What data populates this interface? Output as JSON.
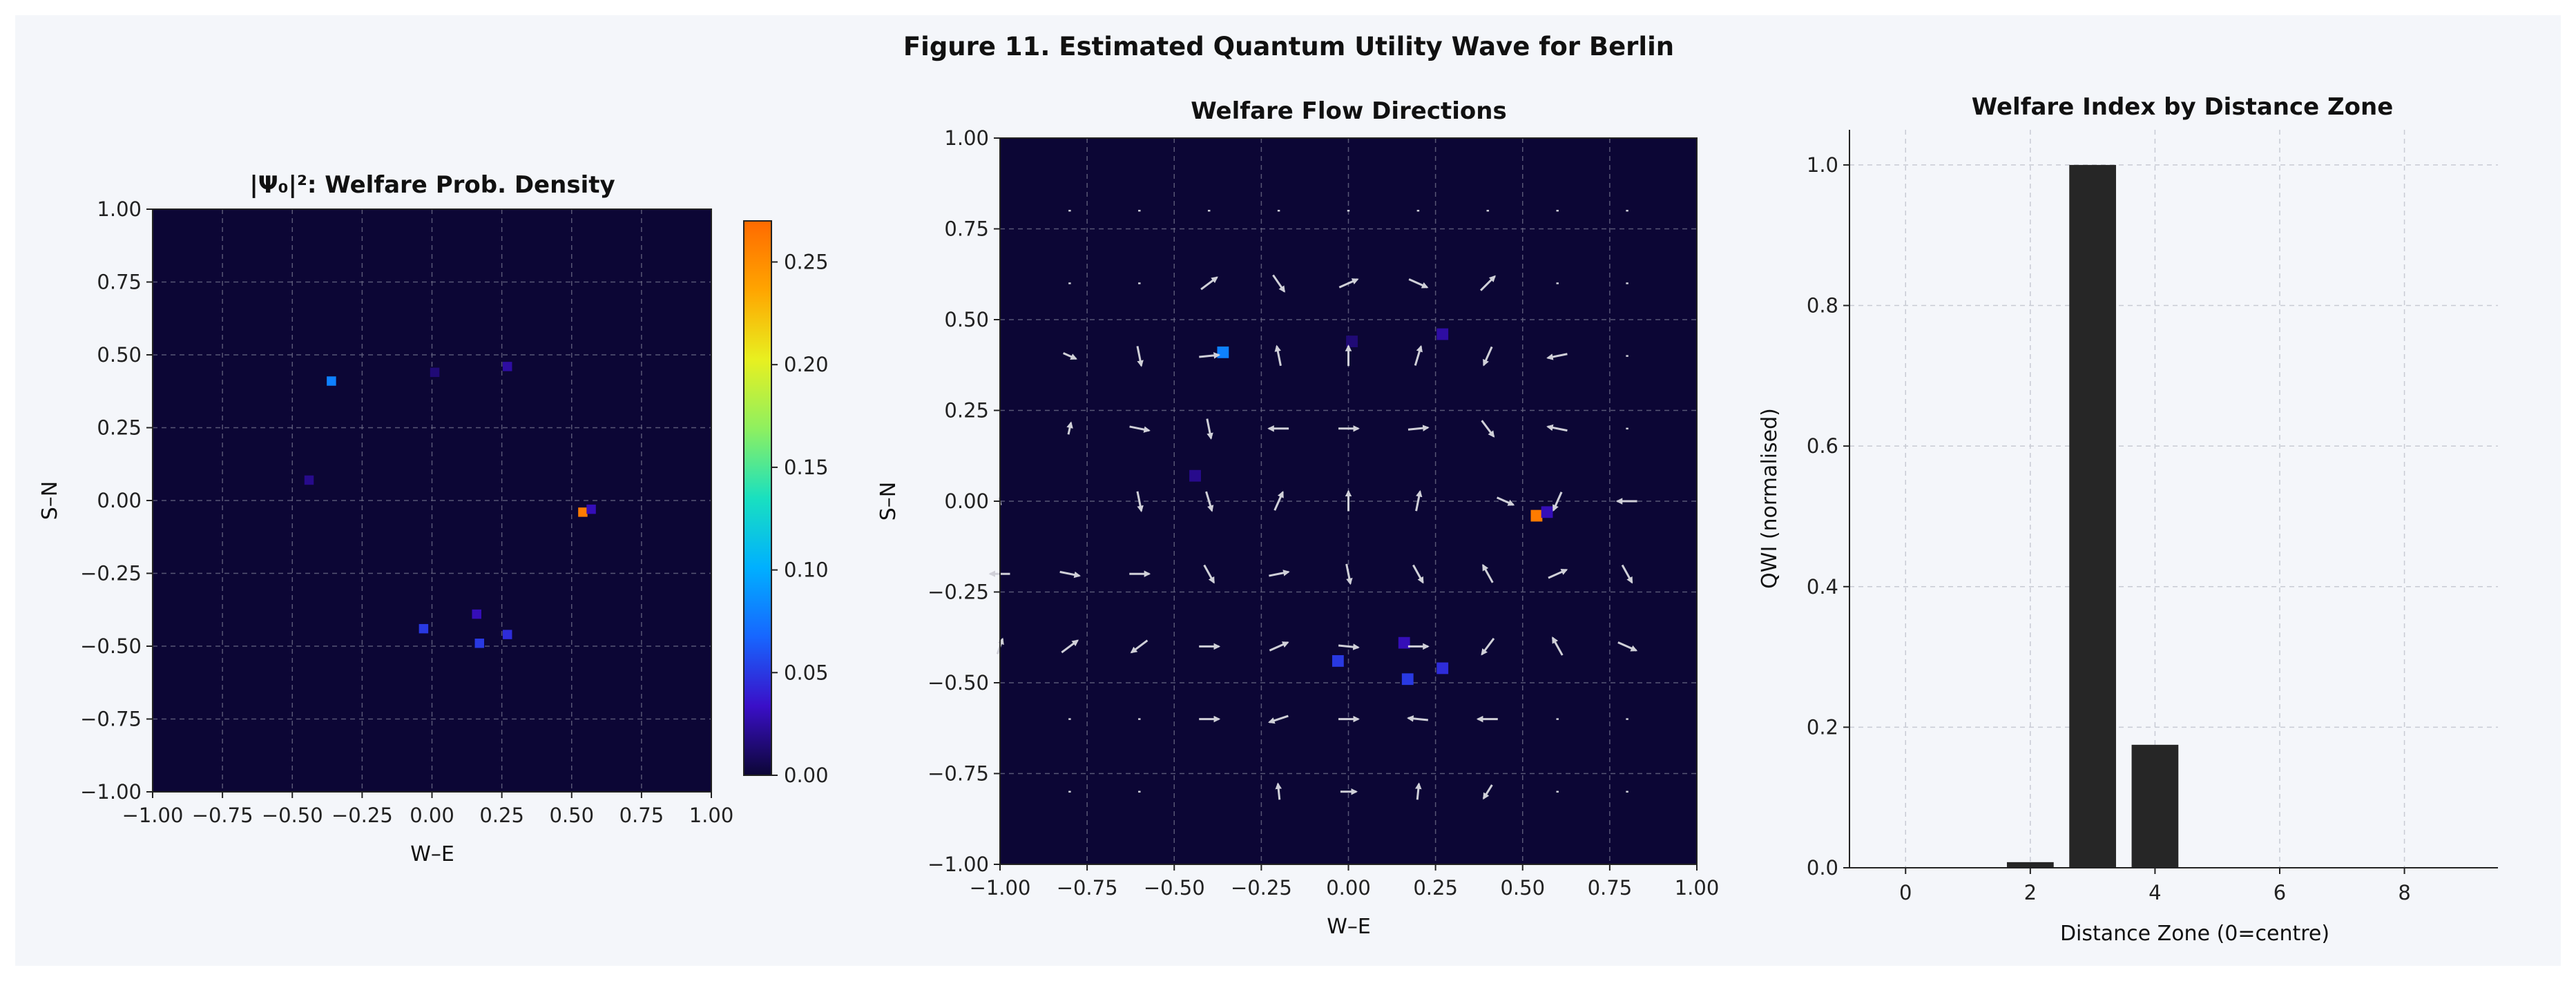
{
  "figure": {
    "title": "Figure 11. Estimated Quantum Utility Wave for Berlin",
    "background": "#f4f6fa"
  },
  "colors": {
    "heatmap_background": "#0c0635",
    "grid": "#6b6b85",
    "arrow": "#d0d0d8",
    "bar": "#262626",
    "axis": "#222222",
    "colormap_stops": [
      "#0c0635",
      "#3a0fc8",
      "#1766ff",
      "#00b0ff",
      "#19e0c0",
      "#8ef060",
      "#e8f020",
      "#ffa500",
      "#ff6a00"
    ]
  },
  "chart_data": [
    {
      "type": "heatmap",
      "title": "|Ψ₀|²: Welfare Prob. Density",
      "xlabel": "W–E",
      "ylabel": "S–N",
      "xlim": [
        -1.0,
        1.0
      ],
      "ylim": [
        -1.0,
        1.0
      ],
      "x_ticks": [
        "−1.00",
        "−0.75",
        "−0.50",
        "−0.25",
        "0.00",
        "0.25",
        "0.50",
        "0.75",
        "1.00"
      ],
      "y_ticks": [
        "1.00",
        "0.75",
        "0.50",
        "0.25",
        "0.00",
        "−0.25",
        "−0.50",
        "−0.75",
        "−1.00"
      ],
      "grid": true,
      "colorbar": {
        "range": [
          0.0,
          0.27
        ],
        "ticks": [
          "0.00",
          "0.05",
          "0.10",
          "0.15",
          "0.20",
          "0.25"
        ],
        "tick_values": [
          0.0,
          0.05,
          0.1,
          0.15,
          0.2,
          0.25
        ]
      },
      "points": [
        {
          "x": 0.54,
          "y": -0.04,
          "value": 0.26
        },
        {
          "x": -0.36,
          "y": 0.41,
          "value": 0.08
        },
        {
          "x": -0.03,
          "y": -0.44,
          "value": 0.05
        },
        {
          "x": 0.17,
          "y": -0.49,
          "value": 0.05
        },
        {
          "x": 0.27,
          "y": -0.46,
          "value": 0.045
        },
        {
          "x": 0.16,
          "y": -0.39,
          "value": 0.03
        },
        {
          "x": 0.27,
          "y": 0.46,
          "value": 0.025
        },
        {
          "x": 0.57,
          "y": -0.03,
          "value": 0.03
        },
        {
          "x": -0.44,
          "y": 0.07,
          "value": 0.02
        },
        {
          "x": 0.01,
          "y": 0.44,
          "value": 0.015
        }
      ]
    },
    {
      "type": "heatmap",
      "title": "Welfare Flow Directions",
      "xlabel": "W–E",
      "ylabel": "S–N",
      "xlim": [
        -1.0,
        1.0
      ],
      "ylim": [
        -1.0,
        1.0
      ],
      "x_ticks": [
        "−1.00",
        "−0.75",
        "−0.50",
        "−0.25",
        "0.00",
        "0.25",
        "0.50",
        "0.75",
        "1.00"
      ],
      "y_ticks": [
        "1.00",
        "0.75",
        "0.50",
        "0.25",
        "0.00",
        "−0.25",
        "−0.50",
        "−0.75",
        "−1.00"
      ],
      "grid": true,
      "background_points": [
        {
          "x": 0.54,
          "y": -0.04,
          "value": 0.26
        },
        {
          "x": -0.36,
          "y": 0.41,
          "value": 0.08
        },
        {
          "x": -0.03,
          "y": -0.44,
          "value": 0.05
        },
        {
          "x": 0.17,
          "y": -0.49,
          "value": 0.05
        },
        {
          "x": 0.27,
          "y": -0.46,
          "value": 0.045
        },
        {
          "x": 0.16,
          "y": -0.39,
          "value": 0.03
        },
        {
          "x": 0.27,
          "y": 0.46,
          "value": 0.025
        },
        {
          "x": 0.57,
          "y": -0.03,
          "value": 0.03
        },
        {
          "x": -0.44,
          "y": 0.07,
          "value": 0.02
        },
        {
          "x": 0.01,
          "y": 0.44,
          "value": 0.015
        }
      ],
      "arrows": [
        {
          "x": -0.8,
          "y": 0.8,
          "u": 0.2,
          "v": 0.0,
          "m": 0.06
        },
        {
          "x": -0.6,
          "y": 0.8,
          "u": 0.2,
          "v": 0.0,
          "m": 0.06
        },
        {
          "x": -0.4,
          "y": 0.8,
          "u": 0.2,
          "v": 0.0,
          "m": 0.06
        },
        {
          "x": -0.2,
          "y": 0.8,
          "u": 0.2,
          "v": 0.0,
          "m": 0.06
        },
        {
          "x": 0.0,
          "y": 0.8,
          "u": 0.2,
          "v": 0.0,
          "m": 0.06
        },
        {
          "x": 0.2,
          "y": 0.8,
          "u": 0.2,
          "v": 0.0,
          "m": 0.06
        },
        {
          "x": 0.4,
          "y": 0.8,
          "u": 0.2,
          "v": 0.0,
          "m": 0.06
        },
        {
          "x": 0.6,
          "y": 0.8,
          "u": 0.2,
          "v": 0.0,
          "m": 0.06
        },
        {
          "x": 0.8,
          "y": 0.8,
          "u": 0.2,
          "v": 0.0,
          "m": 0.06
        },
        {
          "x": -0.8,
          "y": 0.6,
          "u": 0.2,
          "v": 0.0,
          "m": 0.06
        },
        {
          "x": -0.6,
          "y": 0.6,
          "u": 0.2,
          "v": 0.0,
          "m": 0.06
        },
        {
          "x": -0.4,
          "y": 0.6,
          "u": 0.8,
          "v": 0.6,
          "m": 0.5
        },
        {
          "x": -0.2,
          "y": 0.6,
          "u": 0.55,
          "v": -0.8,
          "m": 0.5
        },
        {
          "x": 0.0,
          "y": 0.6,
          "u": 0.9,
          "v": 0.4,
          "m": 0.5
        },
        {
          "x": 0.2,
          "y": 0.6,
          "u": 0.9,
          "v": -0.4,
          "m": 0.5
        },
        {
          "x": 0.4,
          "y": 0.6,
          "u": 0.7,
          "v": 0.7,
          "m": 0.5
        },
        {
          "x": 0.6,
          "y": 0.6,
          "u": 0.2,
          "v": 0.0,
          "m": 0.06
        },
        {
          "x": 0.8,
          "y": 0.6,
          "u": 0.2,
          "v": 0.0,
          "m": 0.06
        },
        {
          "x": -0.8,
          "y": 0.4,
          "u": 0.9,
          "v": -0.4,
          "m": 0.35
        },
        {
          "x": -0.6,
          "y": 0.4,
          "u": 0.2,
          "v": -1.0,
          "m": 0.5
        },
        {
          "x": -0.4,
          "y": 0.4,
          "u": 1.0,
          "v": 0.1,
          "m": 0.5
        },
        {
          "x": -0.2,
          "y": 0.4,
          "u": -0.2,
          "v": 1.0,
          "m": 0.5
        },
        {
          "x": 0.0,
          "y": 0.4,
          "u": 0.0,
          "v": 1.0,
          "m": 0.5
        },
        {
          "x": 0.2,
          "y": 0.4,
          "u": 0.3,
          "v": 1.0,
          "m": 0.5
        },
        {
          "x": 0.4,
          "y": 0.4,
          "u": -0.4,
          "v": -0.9,
          "m": 0.5
        },
        {
          "x": 0.6,
          "y": 0.4,
          "u": -1.0,
          "v": -0.2,
          "m": 0.5
        },
        {
          "x": 0.8,
          "y": 0.4,
          "u": 0.2,
          "v": 0.0,
          "m": 0.06
        },
        {
          "x": -0.8,
          "y": 0.2,
          "u": 0.2,
          "v": 0.9,
          "m": 0.3
        },
        {
          "x": -0.6,
          "y": 0.2,
          "u": 1.0,
          "v": -0.2,
          "m": 0.5
        },
        {
          "x": -0.4,
          "y": 0.2,
          "u": 0.2,
          "v": -1.0,
          "m": 0.5
        },
        {
          "x": -0.2,
          "y": 0.2,
          "u": -1.0,
          "v": 0.0,
          "m": 0.5
        },
        {
          "x": 0.0,
          "y": 0.2,
          "u": 1.0,
          "v": 0.0,
          "m": 0.5
        },
        {
          "x": 0.2,
          "y": 0.2,
          "u": 1.0,
          "v": 0.1,
          "m": 0.5
        },
        {
          "x": 0.4,
          "y": 0.2,
          "u": 0.6,
          "v": -0.8,
          "m": 0.5
        },
        {
          "x": 0.6,
          "y": 0.2,
          "u": -1.0,
          "v": 0.2,
          "m": 0.5
        },
        {
          "x": 0.8,
          "y": 0.2,
          "u": 0.2,
          "v": 0.0,
          "m": 0.06
        },
        {
          "x": -1.0,
          "y": 0.0,
          "u": 0.2,
          "v": -0.9,
          "m": 0.2
        },
        {
          "x": -0.6,
          "y": 0.0,
          "u": 0.2,
          "v": -1.0,
          "m": 0.5
        },
        {
          "x": -0.4,
          "y": 0.0,
          "u": 0.3,
          "v": -1.0,
          "m": 0.5
        },
        {
          "x": -0.2,
          "y": 0.0,
          "u": 0.4,
          "v": 0.9,
          "m": 0.5
        },
        {
          "x": 0.0,
          "y": 0.0,
          "u": 0.0,
          "v": 1.0,
          "m": 0.5
        },
        {
          "x": 0.2,
          "y": 0.0,
          "u": 0.2,
          "v": 1.0,
          "m": 0.5
        },
        {
          "x": 0.45,
          "y": 0.0,
          "u": 0.9,
          "v": -0.4,
          "m": 0.45
        },
        {
          "x": 0.6,
          "y": 0.0,
          "u": -0.4,
          "v": -0.9,
          "m": 0.5
        },
        {
          "x": 0.8,
          "y": 0.0,
          "u": -1.0,
          "v": 0.0,
          "m": 0.5
        },
        {
          "x": -1.0,
          "y": -0.2,
          "u": -1.0,
          "v": 0.0,
          "m": 0.5
        },
        {
          "x": -0.8,
          "y": -0.2,
          "u": 1.0,
          "v": -0.2,
          "m": 0.5
        },
        {
          "x": -0.6,
          "y": -0.2,
          "u": 1.0,
          "v": 0.0,
          "m": 0.5
        },
        {
          "x": -0.4,
          "y": -0.2,
          "u": 0.5,
          "v": -0.9,
          "m": 0.5
        },
        {
          "x": -0.2,
          "y": -0.2,
          "u": 1.0,
          "v": 0.2,
          "m": 0.5
        },
        {
          "x": 0.0,
          "y": -0.2,
          "u": 0.2,
          "v": -1.0,
          "m": 0.5
        },
        {
          "x": 0.2,
          "y": -0.2,
          "u": 0.5,
          "v": -0.9,
          "m": 0.5
        },
        {
          "x": 0.4,
          "y": -0.2,
          "u": -0.5,
          "v": 0.9,
          "m": 0.5
        },
        {
          "x": 0.6,
          "y": -0.2,
          "u": 0.9,
          "v": 0.4,
          "m": 0.5
        },
        {
          "x": 0.8,
          "y": -0.2,
          "u": 0.5,
          "v": -0.9,
          "m": 0.5
        },
        {
          "x": -1.0,
          "y": -0.4,
          "u": 0.3,
          "v": 0.9,
          "m": 0.4
        },
        {
          "x": -0.8,
          "y": -0.4,
          "u": 0.8,
          "v": 0.6,
          "m": 0.5
        },
        {
          "x": -0.6,
          "y": -0.4,
          "u": -0.8,
          "v": -0.6,
          "m": 0.5
        },
        {
          "x": -0.4,
          "y": -0.4,
          "u": 1.0,
          "v": 0.0,
          "m": 0.5
        },
        {
          "x": -0.2,
          "y": -0.4,
          "u": 0.9,
          "v": 0.4,
          "m": 0.5
        },
        {
          "x": 0.0,
          "y": -0.4,
          "u": 1.0,
          "v": -0.1,
          "m": 0.5
        },
        {
          "x": 0.2,
          "y": -0.4,
          "u": 1.0,
          "v": 0.0,
          "m": 0.5
        },
        {
          "x": 0.4,
          "y": -0.4,
          "u": -0.6,
          "v": -0.8,
          "m": 0.5
        },
        {
          "x": 0.6,
          "y": -0.4,
          "u": -0.5,
          "v": 0.9,
          "m": 0.5
        },
        {
          "x": 0.8,
          "y": -0.4,
          "u": 0.9,
          "v": -0.4,
          "m": 0.5
        },
        {
          "x": -0.8,
          "y": -0.6,
          "u": 0.2,
          "v": 0.0,
          "m": 0.06
        },
        {
          "x": -0.6,
          "y": -0.6,
          "u": 0.2,
          "v": 0.0,
          "m": 0.06
        },
        {
          "x": -0.4,
          "y": -0.6,
          "u": 1.0,
          "v": 0.0,
          "m": 0.5
        },
        {
          "x": -0.2,
          "y": -0.6,
          "u": -0.9,
          "v": -0.3,
          "m": 0.5
        },
        {
          "x": 0.0,
          "y": -0.6,
          "u": 1.0,
          "v": 0.0,
          "m": 0.5
        },
        {
          "x": 0.2,
          "y": -0.6,
          "u": -1.0,
          "v": 0.1,
          "m": 0.5
        },
        {
          "x": 0.4,
          "y": -0.6,
          "u": -1.0,
          "v": 0.0,
          "m": 0.5
        },
        {
          "x": 0.6,
          "y": -0.6,
          "u": 0.2,
          "v": 0.0,
          "m": 0.06
        },
        {
          "x": 0.8,
          "y": -0.6,
          "u": 0.2,
          "v": 0.0,
          "m": 0.06
        },
        {
          "x": -0.8,
          "y": -0.8,
          "u": 0.2,
          "v": 0.0,
          "m": 0.06
        },
        {
          "x": -0.6,
          "y": -0.8,
          "u": 0.2,
          "v": 0.0,
          "m": 0.06
        },
        {
          "x": -0.2,
          "y": -0.8,
          "u": -0.1,
          "v": 1.0,
          "m": 0.4
        },
        {
          "x": 0.0,
          "y": -0.8,
          "u": 1.0,
          "v": 0.0,
          "m": 0.4
        },
        {
          "x": 0.2,
          "y": -0.8,
          "u": 0.1,
          "v": 1.0,
          "m": 0.4
        },
        {
          "x": 0.4,
          "y": -0.8,
          "u": -0.5,
          "v": -0.8,
          "m": 0.4
        },
        {
          "x": 0.6,
          "y": -0.8,
          "u": 0.2,
          "v": 0.0,
          "m": 0.06
        },
        {
          "x": 0.8,
          "y": -0.8,
          "u": 0.2,
          "v": 0.0,
          "m": 0.06
        }
      ]
    },
    {
      "type": "bar",
      "title": "Welfare Index by Distance Zone",
      "xlabel": "Distance Zone (0=centre)",
      "ylabel": "QWI (normalised)",
      "categories": [
        0,
        1,
        2,
        3,
        4,
        5,
        6,
        7,
        8,
        9
      ],
      "values": [
        0.0,
        0.0,
        0.008,
        1.0,
        0.175,
        0.0,
        0.0,
        0.0,
        0.0,
        0.0
      ],
      "xlim": [
        -0.9,
        9.5
      ],
      "ylim": [
        0.0,
        1.05
      ],
      "x_ticks": [
        "0",
        "2",
        "4",
        "6",
        "8"
      ],
      "x_tick_values": [
        0,
        2,
        4,
        6,
        8
      ],
      "y_ticks": [
        "0.0",
        "0.2",
        "0.4",
        "0.6",
        "0.8",
        "1.0"
      ],
      "y_tick_values": [
        0.0,
        0.2,
        0.4,
        0.6,
        0.8,
        1.0
      ],
      "grid": true
    }
  ]
}
